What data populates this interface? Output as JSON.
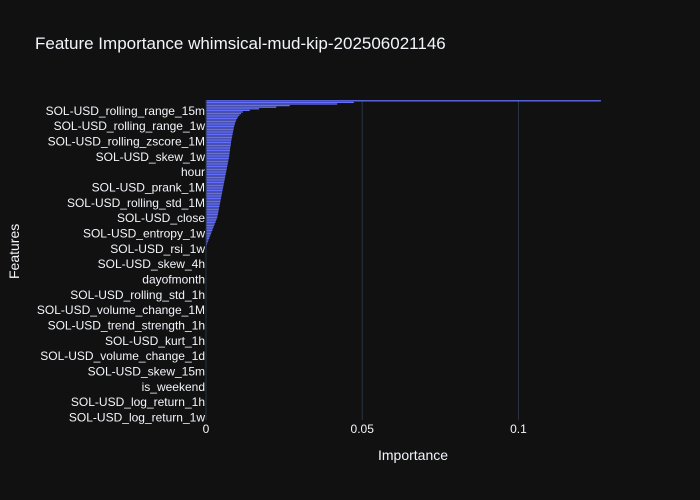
{
  "chart_data": {
    "type": "bar",
    "orientation": "horizontal",
    "title": "Feature Importance whimsical-mud-kip-202506021146",
    "xlabel": "Importance",
    "ylabel": "Features",
    "xlim": [
      0,
      0.1325
    ],
    "grid": true,
    "legend": "none",
    "bar_color": "#636efa",
    "background": "#111111",
    "gridline_color": "#283442",
    "x_ticks": [
      {
        "value": 0,
        "label": "0"
      },
      {
        "value": 0.05,
        "label": "0.05"
      },
      {
        "value": 0.1,
        "label": "0.1"
      }
    ],
    "y_tick_labels": [
      "SOL-USD_rolling_range_15m",
      "SOL-USD_rolling_range_1w",
      "SOL-USD_rolling_zscore_1M",
      "SOL-USD_skew_1w",
      "hour",
      "SOL-USD_prank_1M",
      "SOL-USD_rolling_std_1M",
      "SOL-USD_close",
      "SOL-USD_entropy_1w",
      "SOL-USD_rsi_1w",
      "SOL-USD_skew_4h",
      "dayofmonth",
      "SOL-USD_rolling_std_1h",
      "SOL-USD_volume_change_1M",
      "SOL-USD_trend_strength_1h",
      "SOL-USD_kurt_1h",
      "SOL-USD_volume_change_1d",
      "SOL-USD_skew_15m",
      "is_weekend",
      "SOL-USD_log_return_1h",
      "SOL-USD_log_return_1w"
    ],
    "values": [
      0.1264,
      0.0473,
      0.042,
      0.0268,
      0.0225,
      0.017,
      0.014,
      0.0118,
      0.0112,
      0.0107,
      0.0103,
      0.01,
      0.0097,
      0.0095,
      0.0093,
      0.0092,
      0.009,
      0.0089,
      0.0088,
      0.0087,
      0.0086,
      0.0085,
      0.0084,
      0.0083,
      0.0082,
      0.0081,
      0.008,
      0.008,
      0.0079,
      0.0078,
      0.0077,
      0.0077,
      0.0076,
      0.0075,
      0.0075,
      0.0074,
      0.0073,
      0.0072,
      0.0071,
      0.007,
      0.0069,
      0.0068,
      0.0067,
      0.0066,
      0.0065,
      0.0064,
      0.0063,
      0.0062,
      0.0061,
      0.006,
      0.0059,
      0.0058,
      0.0057,
      0.0056,
      0.0055,
      0.0054,
      0.0053,
      0.0052,
      0.0051,
      0.005,
      0.0049,
      0.0048,
      0.0047,
      0.0046,
      0.0045,
      0.0044,
      0.0043,
      0.0042,
      0.0041,
      0.004,
      0.0039,
      0.0038,
      0.0037,
      0.0036,
      0.0034,
      0.0032,
      0.003,
      0.0028,
      0.0026,
      0.0024,
      0.0022,
      0.002,
      0.0018,
      0.0016,
      0.0014,
      0.0012,
      0.001,
      0.0008,
      0.0006,
      0.0004,
      0.0003,
      0.0002,
      0.0001,
      0.0,
      0.0,
      0.0,
      0.0,
      0.0,
      0.0,
      0.0,
      0.0,
      0.0,
      0.0,
      0.0,
      0.0,
      0.0,
      0.0,
      0.0,
      0.0,
      0.0,
      0.0,
      0.0,
      0.0,
      0.0,
      0.0,
      0.0,
      0.0,
      0.0,
      0.0,
      0.0,
      0.0,
      0.0,
      0.0,
      0.0,
      0.0,
      0.0,
      0.0,
      0.0,
      0.0,
      0.0,
      0.0,
      0.0,
      0.0,
      0.0,
      0.0,
      0.0,
      0.0,
      0.0,
      0.0,
      0.0,
      0.0,
      0.0,
      0.0,
      0.0,
      0.0,
      0.0,
      0.0,
      0.0,
      0.0,
      0.0,
      0.0,
      0.0,
      0.0,
      0.0,
      0.0,
      0.0,
      0.0,
      0.0,
      0.0,
      0.0,
      0.0,
      0.0,
      0.0,
      0.0,
      0.0,
      0.0,
      0.0,
      0.0,
      0.0,
      0.0,
      0.0,
      0.0,
      0.0,
      0.0,
      0.0,
      0.0,
      0.0,
      0.0,
      0.0,
      0.0,
      0.0,
      0.0,
      0.0,
      0.0,
      0.0,
      0.0,
      0.0,
      0.0,
      0.0,
      0.0,
      0.0,
      0.0,
      0.0,
      0.0,
      0.0,
      0.0,
      0.0,
      0.0,
      0.0,
      0.0
    ]
  }
}
